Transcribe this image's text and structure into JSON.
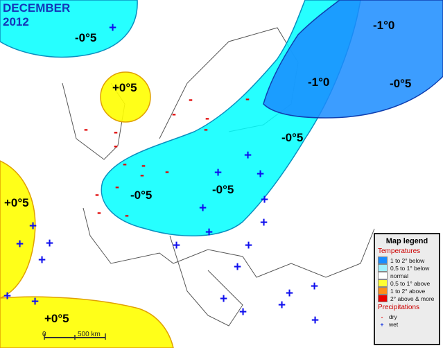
{
  "title": {
    "month": "DECEMBER",
    "year": "2012"
  },
  "anomaly_labels": [
    "-0°5",
    "-1°0",
    "-1°0",
    "-0°5",
    "+0°5",
    "-0°5",
    "-0°5",
    "-0°5",
    "+0°5",
    "+0°5"
  ],
  "scale_bar": {
    "zero": "0",
    "distance": "500 km"
  },
  "legend": {
    "title": "Map legend",
    "temperatures_heading": "Temperatures",
    "temperature_items": [
      {
        "label": "1 to 2° below",
        "color": "#1a8cff"
      },
      {
        "label": "0,5 to 1° below",
        "color": "#9ff0ff"
      },
      {
        "label": "normal",
        "color": "#ffffff"
      },
      {
        "label": "0,5 to 1° above",
        "color": "#ffff33"
      },
      {
        "label": "1 to 2° above",
        "color": "#ff8c1a"
      },
      {
        "label": "2° above & more",
        "color": "#ee0000"
      }
    ],
    "precip_heading": "Precipitations",
    "precip_items": [
      {
        "symbol": "-",
        "label": "dry",
        "color": "#e00000"
      },
      {
        "symbol": "+",
        "label": "wet",
        "color": "#1030e0"
      }
    ]
  },
  "colors": {
    "cold_light": "#00ffff",
    "cold_dark": "#1a8cff",
    "warm": "#ffff00",
    "dry_marker": "#e00000",
    "wet_marker": "#1010ee",
    "title": "#1535b8"
  }
}
